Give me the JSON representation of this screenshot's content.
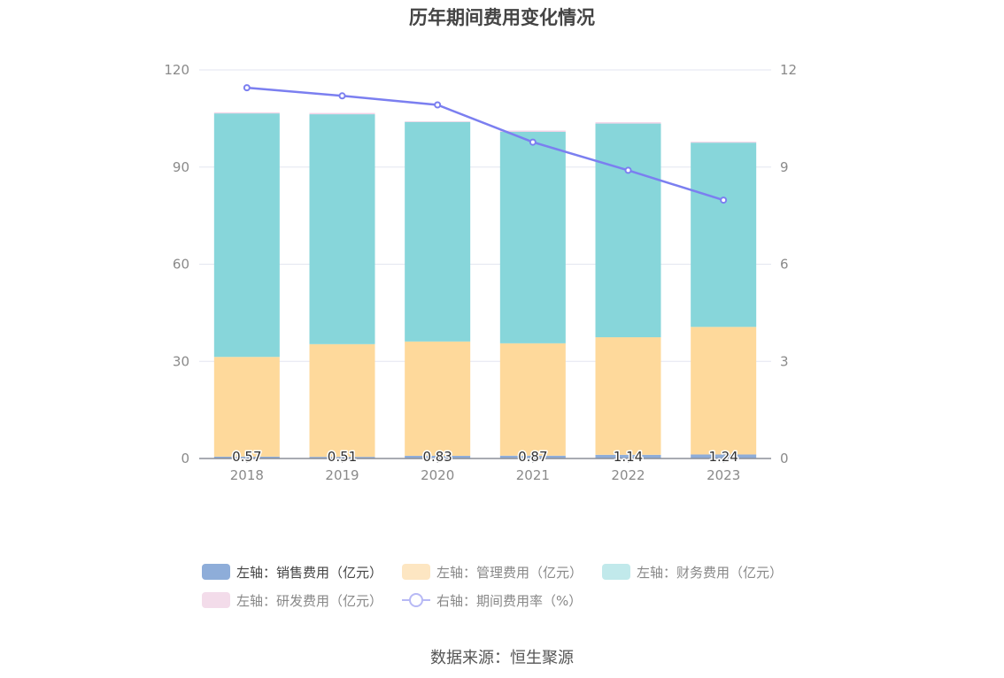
{
  "chart_data": {
    "type": "bar",
    "title": "历年期间费用变化情况",
    "categories": [
      "2018",
      "2019",
      "2020",
      "2021",
      "2022",
      "2023"
    ],
    "series": [
      {
        "name": "左轴：销售费用（亿元）",
        "axis": "left",
        "color": "#8eadd9",
        "values": [
          0.57,
          0.51,
          0.83,
          0.87,
          1.14,
          1.24
        ],
        "labels": [
          "0.57",
          "0.51",
          "0.83",
          "0.87",
          "1.14",
          "1.24"
        ]
      },
      {
        "name": "左轴：管理费用（亿元）",
        "axis": "left",
        "color": "#fed99b",
        "values": [
          30.8,
          34.8,
          35.3,
          34.7,
          36.3,
          39.4
        ]
      },
      {
        "name": "左轴：财务费用（亿元）",
        "axis": "left",
        "color": "#87d6da",
        "values": [
          75.2,
          71.0,
          67.8,
          65.3,
          66.0,
          56.9
        ]
      },
      {
        "name": "左轴：研发费用（亿元）",
        "axis": "left",
        "color": "#f1d2e6",
        "values": [
          0.3,
          0.4,
          0.2,
          0.4,
          0.4,
          0.3
        ]
      },
      {
        "name": "右轴：期间费用率（%）",
        "axis": "right",
        "type": "line",
        "color": "#7b7ff0",
        "values": [
          11.45,
          11.2,
          10.92,
          9.77,
          8.9,
          7.98
        ]
      }
    ],
    "left_axis": {
      "ylim": [
        0,
        120
      ],
      "ticks": [
        0,
        30,
        60,
        90,
        120
      ],
      "tick_labels": [
        "0",
        "30",
        "60",
        "90",
        "120"
      ]
    },
    "right_axis": {
      "ylim": [
        0,
        12
      ],
      "ticks": [
        0,
        3,
        6,
        9,
        12
      ],
      "tick_labels": [
        "0",
        "3",
        "6",
        "9",
        "12"
      ]
    },
    "grid": true,
    "legend_position": "bottom"
  },
  "source_text": "数据来源：恒生聚源"
}
